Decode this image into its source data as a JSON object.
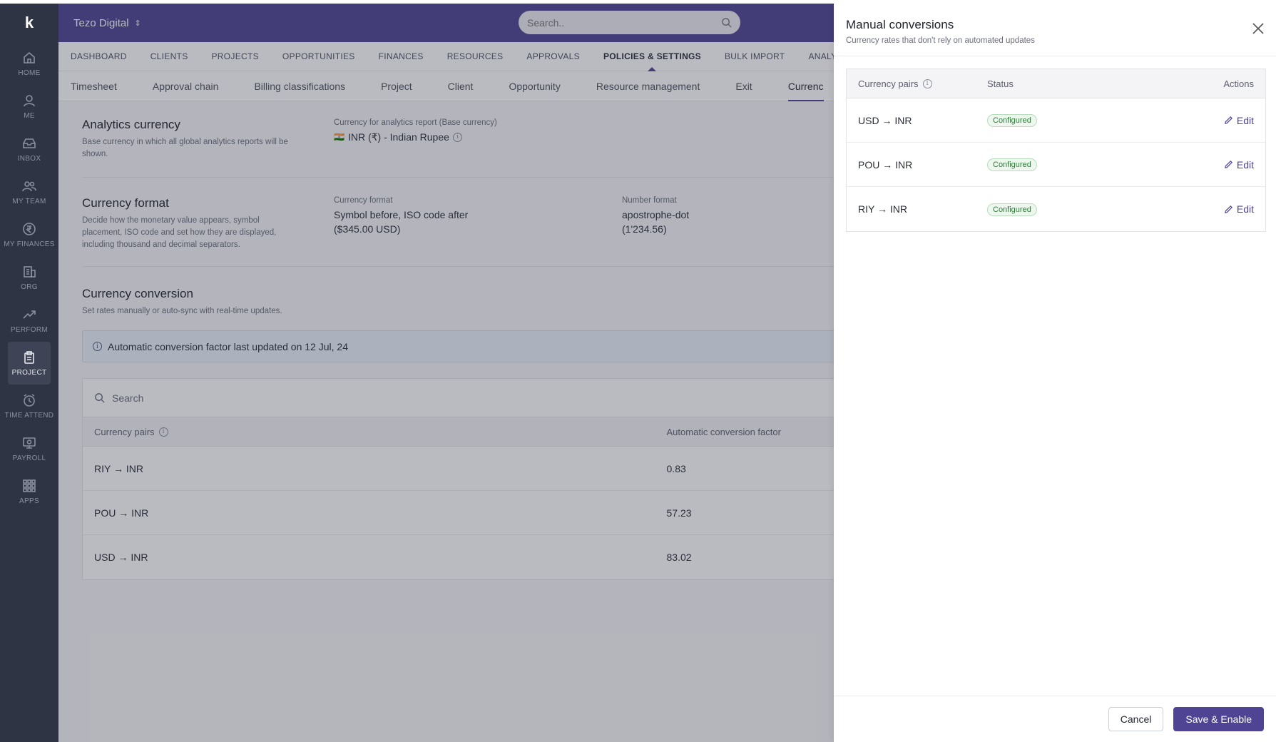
{
  "app": {
    "org_name": "Tezo Digital",
    "search_placeholder": "Search.."
  },
  "rail": {
    "logo": "k",
    "items": [
      {
        "label": "HOME",
        "icon": "home-icon"
      },
      {
        "label": "ME",
        "icon": "user-icon"
      },
      {
        "label": "INBOX",
        "icon": "inbox-icon"
      },
      {
        "label": "MY TEAM",
        "icon": "team-icon"
      },
      {
        "label": "MY FINANCES",
        "icon": "rupee-icon"
      },
      {
        "label": "ORG",
        "icon": "building-icon"
      },
      {
        "label": "PERFORM",
        "icon": "trend-icon"
      },
      {
        "label": "PROJECT",
        "icon": "clipboard-icon",
        "active": true
      },
      {
        "label": "TIME ATTEND",
        "icon": "clock-icon"
      },
      {
        "label": "PAYROLL",
        "icon": "payroll-icon"
      },
      {
        "label": "APPS",
        "icon": "grid-icon"
      }
    ]
  },
  "nav1": [
    "DASHBOARD",
    "CLIENTS",
    "PROJECTS",
    "OPPORTUNITIES",
    "FINANCES",
    "RESOURCES",
    "APPROVALS",
    "POLICIES & SETTINGS",
    "BULK IMPORT",
    "ANALYTICS"
  ],
  "nav2": [
    "Timesheet",
    "Approval chain",
    "Billing classifications",
    "Project",
    "Client",
    "Opportunity",
    "Resource management",
    "Exit",
    "Currenc"
  ],
  "analytics": {
    "title": "Analytics currency",
    "desc": "Base currency in which all global analytics reports will be shown.",
    "field_label": "Currency for analytics report (Base currency)",
    "flag": "🇮🇳",
    "field_value": "INR (₹) - Indian Rupee"
  },
  "format": {
    "title": "Currency format",
    "desc": "Decide how the monetary value appears, symbol placement, ISO code and set how they are displayed, including thousand and decimal separators.",
    "currency_label": "Currency format",
    "currency_value_1": "Symbol before, ISO code after",
    "currency_value_2": "($345.00 USD)",
    "number_label": "Number format",
    "number_value_1": "apostrophe-dot",
    "number_value_2": "(1'234.56)"
  },
  "conversion": {
    "title": "Currency conversion",
    "desc": "Set rates manually or auto-sync with real-time updates.",
    "banner": "Automatic conversion factor last updated on 12 Jul, 24",
    "search_placeholder": "Search",
    "col_pairs": "Currency pairs",
    "col_factor": "Automatic conversion factor",
    "rows": [
      {
        "pair": "RIY → INR",
        "factor": "0.83"
      },
      {
        "pair": "POU → INR",
        "factor": "57.23"
      },
      {
        "pair": "USD → INR",
        "factor": "83.02"
      }
    ]
  },
  "drawer": {
    "title": "Manual conversions",
    "subtitle": "Currency rates that don't rely on automated updates",
    "col_pairs": "Currency pairs",
    "col_status": "Status",
    "col_actions": "Actions",
    "rows": [
      {
        "pair": "USD → INR",
        "status": "Configured",
        "action": "Edit"
      },
      {
        "pair": "POU → INR",
        "status": "Configured",
        "action": "Edit"
      },
      {
        "pair": "RIY → INR",
        "status": "Configured",
        "action": "Edit"
      }
    ],
    "cancel": "Cancel",
    "save": "Save & Enable"
  }
}
